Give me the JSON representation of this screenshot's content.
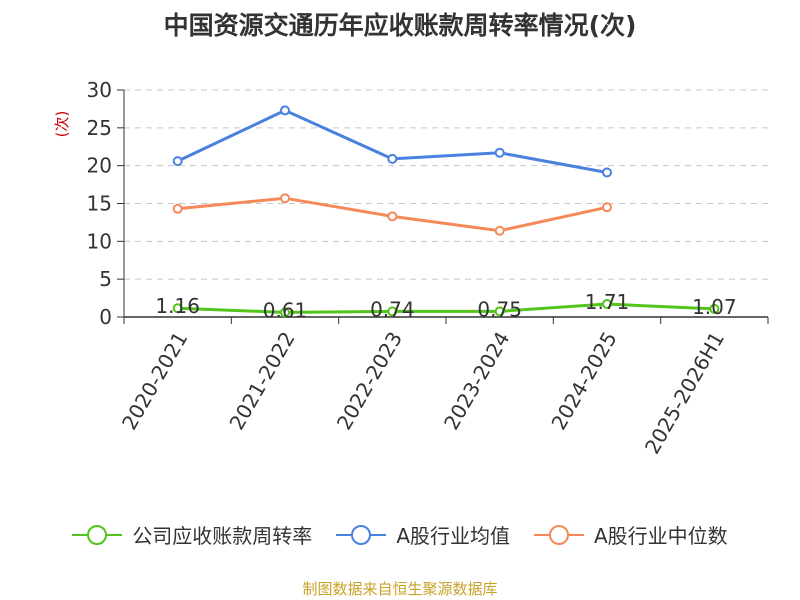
{
  "title": "中国资源交通历年应收账款周转率情况(次)",
  "source": "制图数据来自恒生聚源数据库",
  "chart_data": {
    "type": "line",
    "title": "中国资源交通历年应收账款周转率情况(次)",
    "ylabel": "(次)",
    "ylim": [
      0,
      30
    ],
    "yticks": [
      0,
      5,
      10,
      15,
      20,
      25,
      30
    ],
    "categories": [
      "2020-2021",
      "2021-2022",
      "2022-2023",
      "2023-2024",
      "2024-2025",
      "2025-2026H1"
    ],
    "grid": true,
    "legend_position": "bottom",
    "series": [
      {
        "name": "公司应收账款周转率",
        "color": "#52c41a",
        "values": [
          1.16,
          0.61,
          0.74,
          0.75,
          1.71,
          1.07
        ],
        "labels": [
          "1.16",
          "0.61",
          "0.74",
          "0.75",
          "1.71",
          "1.07"
        ]
      },
      {
        "name": "A股行业均值",
        "color": "#4a80e0",
        "values": [
          20.6,
          27.3,
          20.9,
          21.7,
          19.1,
          null
        ]
      },
      {
        "name": "A股行业中位数",
        "color": "#f6895a",
        "values": [
          14.3,
          15.7,
          13.3,
          11.4,
          14.5,
          null
        ]
      }
    ]
  }
}
